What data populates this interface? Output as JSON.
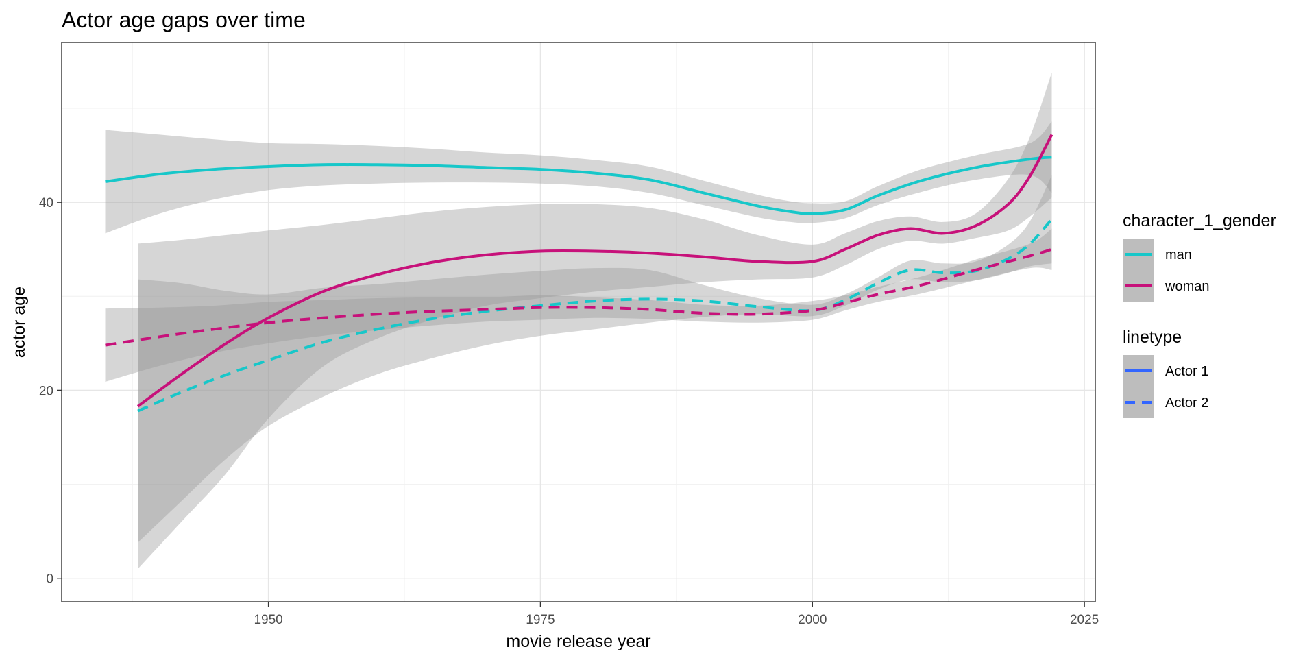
{
  "chart_data": {
    "type": "line",
    "title": "Actor age gaps over time",
    "xlabel": "movie release year",
    "ylabel": "actor age",
    "xlim": [
      1931,
      2026
    ],
    "ylim": [
      -2.5,
      57
    ],
    "xticks": [
      1950,
      1975,
      2000,
      2025
    ],
    "yticks": [
      0,
      20,
      40
    ],
    "x_tick_labels": [
      "1950",
      "1975",
      "2000",
      "2025"
    ],
    "y_tick_labels": [
      "0",
      "20",
      "40"
    ],
    "grid": true,
    "legend_position": "right",
    "legends": [
      {
        "title": "character_1_gender",
        "entries": [
          {
            "label": "man",
            "color": "#17c7c9"
          },
          {
            "label": "woman",
            "color": "#c7117a"
          }
        ]
      },
      {
        "title": "linetype",
        "entries": [
          {
            "label": "Actor 1",
            "color": "#3366ff",
            "dash": "solid"
          },
          {
            "label": "Actor 2",
            "color": "#3366ff",
            "dash": "dashed"
          }
        ]
      }
    ],
    "colors": {
      "man": "#17c7c9",
      "woman": "#c7117a",
      "ribbon": "#999999"
    },
    "series": [
      {
        "name": "man",
        "linetype": "Actor 1",
        "color": "#17c7c9",
        "x": [
          1935,
          1940,
          1945,
          1950,
          1955,
          1960,
          1965,
          1970,
          1975,
          1980,
          1985,
          1990,
          1995,
          1998,
          2000,
          2003,
          2006,
          2010,
          2015,
          2020,
          2022
        ],
        "y": [
          42.2,
          43.0,
          43.5,
          43.8,
          44.0,
          44.0,
          43.9,
          43.7,
          43.5,
          43.1,
          42.4,
          41.0,
          39.6,
          39.0,
          38.8,
          39.2,
          40.7,
          42.3,
          43.7,
          44.6,
          44.8
        ],
        "lower": [
          36.7,
          38.8,
          40.3,
          41.3,
          41.8,
          42.0,
          42.1,
          42.1,
          42.0,
          41.7,
          41.0,
          39.7,
          38.4,
          37.9,
          37.8,
          38.3,
          39.7,
          41.1,
          42.4,
          42.9,
          41.0
        ],
        "upper": [
          47.7,
          47.2,
          46.7,
          46.3,
          46.2,
          46.0,
          45.7,
          45.3,
          45.0,
          44.5,
          43.8,
          42.3,
          40.8,
          40.1,
          39.9,
          40.1,
          41.7,
          43.5,
          45.0,
          46.3,
          48.6
        ]
      },
      {
        "name": "woman",
        "linetype": "Actor 1",
        "color": "#c7117a",
        "x": [
          1938,
          1942,
          1946,
          1950,
          1955,
          1960,
          1965,
          1970,
          1975,
          1980,
          1985,
          1990,
          1995,
          2000,
          2003,
          2006,
          2009,
          2012,
          2015,
          2018,
          2020,
          2022
        ],
        "y": [
          18.3,
          21.7,
          24.9,
          27.7,
          30.5,
          32.3,
          33.6,
          34.4,
          34.8,
          34.8,
          34.6,
          34.2,
          33.7,
          33.7,
          35.0,
          36.5,
          37.2,
          36.7,
          37.5,
          39.8,
          42.8,
          47.2
        ],
        "lower": [
          1.0,
          6.0,
          11.0,
          17.0,
          22.5,
          25.5,
          27.5,
          29.0,
          29.8,
          30.5,
          31.0,
          31.5,
          31.8,
          32.0,
          33.3,
          35.0,
          35.9,
          35.6,
          36.2,
          37.0,
          38.5,
          40.5
        ],
        "upper": [
          35.6,
          36.0,
          36.5,
          37.0,
          37.6,
          38.3,
          39.0,
          39.5,
          39.8,
          39.8,
          39.4,
          38.2,
          36.5,
          35.5,
          36.7,
          38.0,
          38.5,
          37.9,
          38.8,
          42.5,
          47.0,
          53.8
        ]
      },
      {
        "name": "man",
        "linetype": "Actor 2",
        "color": "#17c7c9",
        "x": [
          1938,
          1942,
          1946,
          1950,
          1955,
          1960,
          1965,
          1970,
          1975,
          1980,
          1985,
          1990,
          1995,
          2000,
          2003,
          2006,
          2009,
          2012,
          2015,
          2018,
          2020,
          2022
        ],
        "y": [
          17.8,
          19.8,
          21.6,
          23.2,
          25.1,
          26.5,
          27.6,
          28.4,
          29.0,
          29.5,
          29.7,
          29.5,
          28.9,
          28.5,
          29.6,
          31.4,
          32.8,
          32.5,
          32.7,
          34.0,
          35.6,
          38.2
        ],
        "lower": [
          3.8,
          8.2,
          12.6,
          16.2,
          19.3,
          21.7,
          23.4,
          24.8,
          25.8,
          26.5,
          27.2,
          27.8,
          28.1,
          27.9,
          29.0,
          30.7,
          31.8,
          31.5,
          31.7,
          32.5,
          33.2,
          33.5
        ],
        "upper": [
          31.8,
          31.4,
          30.6,
          30.2,
          30.9,
          31.3,
          31.8,
          32.3,
          32.7,
          33.0,
          32.8,
          31.2,
          29.8,
          29.1,
          30.2,
          32.0,
          33.8,
          33.5,
          33.7,
          35.5,
          38.0,
          42.9
        ]
      },
      {
        "name": "woman",
        "linetype": "Actor 2",
        "color": "#c7117a",
        "x": [
          1935,
          1940,
          1945,
          1950,
          1955,
          1960,
          1965,
          1970,
          1975,
          1980,
          1985,
          1990,
          1995,
          2000,
          2003,
          2006,
          2010,
          2015,
          2020,
          2022
        ],
        "y": [
          24.8,
          25.7,
          26.5,
          27.2,
          27.7,
          28.1,
          28.4,
          28.6,
          28.8,
          28.8,
          28.6,
          28.2,
          28.1,
          28.5,
          29.3,
          30.2,
          31.2,
          32.8,
          34.3,
          35.0
        ],
        "lower": [
          20.9,
          22.6,
          24.0,
          25.0,
          25.8,
          26.4,
          26.9,
          27.3,
          27.5,
          27.7,
          27.6,
          27.3,
          27.2,
          27.5,
          28.5,
          29.4,
          30.3,
          31.7,
          33.0,
          32.8
        ],
        "upper": [
          28.7,
          28.8,
          29.0,
          29.4,
          29.6,
          29.8,
          29.9,
          29.9,
          30.1,
          29.9,
          29.6,
          29.1,
          29.0,
          29.5,
          30.1,
          31.0,
          32.1,
          33.9,
          35.6,
          37.2
        ]
      }
    ]
  }
}
